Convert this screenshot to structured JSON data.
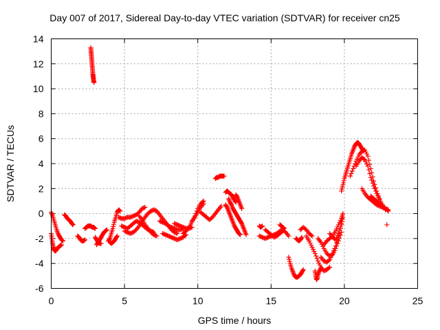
{
  "chart_data": {
    "type": "scatter",
    "title": "Day 007 of 2017, Sidereal Day-to-day VTEC variation (SDTVAR) for receiver cn25",
    "xlabel": "GPS time / hours",
    "ylabel": "SDTVAR / TECUs",
    "xlim": [
      0,
      25
    ],
    "ylim": [
      -6,
      14
    ],
    "xticks": [
      0,
      5,
      10,
      15,
      20,
      25
    ],
    "yticks": [
      -6,
      -4,
      -2,
      0,
      2,
      4,
      6,
      8,
      10,
      12,
      14
    ],
    "grid": true,
    "marker": "+",
    "series": [
      {
        "name": "SDTVAR",
        "color": "#ff0000",
        "tracks": [
          {
            "x": [
              0.0,
              0.1,
              0.2,
              0.3,
              0.4,
              0.5,
              0.6,
              0.7,
              0.8
            ],
            "y": [
              0.1,
              -0.2,
              -0.6,
              -1.0,
              -1.4,
              -1.7,
              -1.9,
              -2.1,
              -2.2
            ]
          },
          {
            "x": [
              0.0,
              0.05,
              0.1,
              0.15,
              0.2,
              0.25,
              0.3,
              0.35,
              0.4,
              0.5,
              0.6,
              0.7
            ],
            "y": [
              -1.6,
              -2.0,
              -2.4,
              -2.7,
              -2.9,
              -3.0,
              -3.0,
              -2.9,
              -2.8,
              -2.7,
              -2.6,
              -2.5
            ]
          },
          {
            "x": [
              0.9,
              1.0,
              1.1,
              1.2,
              1.3,
              1.4,
              1.5
            ],
            "y": [
              -0.1,
              -0.2,
              -0.4,
              -0.5,
              -0.6,
              -0.8,
              -0.9
            ]
          },
          {
            "x": [
              1.8,
              1.9,
              2.0,
              2.1,
              2.2,
              2.3
            ],
            "y": [
              -1.8,
              -1.9,
              -2.1,
              -2.2,
              -2.2,
              -2.1
            ]
          },
          {
            "x": [
              2.3,
              2.4,
              2.5,
              2.6,
              2.7,
              2.8,
              2.9,
              3.0
            ],
            "y": [
              -1.2,
              -1.1,
              -1.0,
              -1.0,
              -1.0,
              -1.1,
              -1.1,
              -1.2
            ]
          },
          {
            "x": [
              2.7,
              2.72,
              2.74,
              2.76,
              2.78,
              2.8,
              2.82,
              2.84,
              2.86,
              2.88,
              2.9,
              2.92
            ],
            "y": [
              13.3,
              13.0,
              12.7,
              12.4,
              12.1,
              11.8,
              11.5,
              11.2,
              11.0,
              10.8,
              10.6,
              10.5
            ]
          },
          {
            "x": [
              3.1,
              3.2,
              3.3,
              3.4,
              3.5,
              3.6,
              3.7,
              3.8
            ],
            "y": [
              -2.5,
              -2.3,
              -2.1,
              -1.9,
              -1.7,
              -1.5,
              -1.4,
              -1.3
            ]
          },
          {
            "x": [
              3.0,
              3.1,
              3.2,
              3.3,
              3.4
            ],
            "y": [
              -1.9,
              -2.1,
              -2.3,
              -2.4,
              -2.4
            ]
          },
          {
            "x": [
              3.9,
              4.0,
              4.1,
              4.2,
              4.3,
              4.4,
              4.5,
              4.6,
              4.7
            ],
            "y": [
              -2.2,
              -2.0,
              -1.6,
              -1.2,
              -0.7,
              -0.3,
              0.1,
              0.3,
              0.2
            ]
          },
          {
            "x": [
              4.0,
              4.1,
              4.2,
              4.3,
              4.4,
              4.5
            ],
            "y": [
              -2.3,
              -2.4,
              -2.3,
              -2.2,
              -2.0,
              -1.8
            ]
          },
          {
            "x": [
              4.6,
              4.8,
              5.0,
              5.2,
              5.4,
              5.6,
              5.8,
              6.0,
              6.2,
              6.4
            ],
            "y": [
              -0.3,
              -0.4,
              -0.4,
              -0.3,
              -0.3,
              -0.2,
              -0.1,
              0.1,
              0.4,
              0.5
            ]
          },
          {
            "x": [
              4.8,
              5.0,
              5.2,
              5.4,
              5.6,
              5.8,
              6.0,
              6.2,
              6.4,
              6.6,
              6.8,
              7.0
            ],
            "y": [
              -1.0,
              -1.1,
              -1.2,
              -1.0,
              -0.8,
              -0.6,
              -0.7,
              -0.9,
              -1.1,
              -1.3,
              -1.4,
              -1.5
            ]
          },
          {
            "x": [
              5.0,
              5.2,
              5.4,
              5.6,
              5.8,
              6.0,
              6.2,
              6.4,
              6.6,
              6.8,
              7.0,
              7.2,
              7.4,
              7.6,
              7.8,
              8.0,
              8.2,
              8.4,
              8.6
            ],
            "y": [
              -1.4,
              -1.5,
              -1.6,
              -1.5,
              -1.3,
              -1.0,
              -0.6,
              -0.3,
              0.0,
              0.2,
              0.3,
              0.2,
              -0.1,
              -0.4,
              -0.7,
              -1.0,
              -1.3,
              -1.5,
              -1.6
            ]
          },
          {
            "x": [
              6.0,
              6.2,
              6.4,
              6.6,
              6.8,
              7.0,
              7.2
            ],
            "y": [
              -0.2,
              -0.5,
              -0.9,
              -1.2,
              -1.5,
              -1.7,
              -1.8
            ]
          },
          {
            "x": [
              7.4,
              7.6,
              7.8,
              8.0,
              8.2,
              8.4,
              8.6,
              8.8,
              9.0
            ],
            "y": [
              -0.6,
              -0.7,
              -0.8,
              -1.0,
              -1.1,
              -1.2,
              -1.3,
              -1.3,
              -1.2
            ]
          },
          {
            "x": [
              7.6,
              7.8,
              8.0,
              8.2,
              8.4,
              8.6,
              8.8,
              9.0,
              9.2
            ],
            "y": [
              -1.6,
              -1.7,
              -1.8,
              -1.9,
              -2.0,
              -2.1,
              -2.0,
              -1.9,
              -1.7
            ]
          },
          {
            "x": [
              8.4,
              8.6,
              8.8,
              9.0,
              9.2,
              9.4,
              9.6
            ],
            "y": [
              -0.8,
              -0.9,
              -1.0,
              -1.1,
              -1.2,
              -1.2,
              -1.1
            ]
          },
          {
            "x": [
              9.0,
              9.2,
              9.4,
              9.6,
              9.8,
              10.0,
              10.2,
              10.4
            ],
            "y": [
              -1.6,
              -1.4,
              -1.1,
              -0.7,
              -0.2,
              0.4,
              0.8,
              1.0
            ]
          },
          {
            "x": [
              9.6,
              9.8,
              10.0,
              10.2,
              10.4
            ],
            "y": [
              -0.6,
              -0.3,
              0.1,
              0.5,
              0.8
            ]
          },
          {
            "x": [
              10.2,
              10.4,
              10.6,
              10.8,
              11.0,
              11.2,
              11.4,
              11.6
            ],
            "y": [
              0.1,
              -0.1,
              -0.3,
              -0.5,
              -0.3,
              0.0,
              0.3,
              0.6
            ]
          },
          {
            "x": [
              11.2,
              11.3,
              11.4,
              11.5,
              11.6,
              11.7,
              11.8
            ],
            "y": [
              2.8,
              2.9,
              2.9,
              3.0,
              3.0,
              3.0,
              3.0
            ]
          },
          {
            "x": [
              11.9,
              12.0,
              12.1,
              12.2,
              12.3,
              12.4,
              12.5,
              12.6
            ],
            "y": [
              1.7,
              1.8,
              1.7,
              1.6,
              1.5,
              1.3,
              1.1,
              0.9
            ]
          },
          {
            "x": [
              11.9,
              12.0,
              12.1,
              12.2,
              12.3,
              12.4,
              12.5,
              12.6,
              12.7,
              12.8,
              12.9
            ],
            "y": [
              0.7,
              0.5,
              0.2,
              -0.1,
              -0.4,
              -0.7,
              -1.0,
              -1.2,
              -1.4,
              -1.6,
              -1.7
            ]
          },
          {
            "x": [
              12.1,
              12.2,
              12.3,
              12.4,
              12.5,
              12.6,
              12.7,
              12.8,
              12.9,
              13.0,
              13.1,
              13.2,
              13.3
            ],
            "y": [
              1.2,
              0.9,
              0.7,
              0.4,
              0.2,
              0.0,
              -0.2,
              -0.4,
              -0.6,
              -0.8,
              -1.1,
              -1.4,
              -1.7
            ]
          },
          {
            "x": [
              12.6,
              12.7,
              12.8,
              12.9,
              13.0
            ],
            "y": [
              1.5,
              1.3,
              1.0,
              0.7,
              0.4
            ]
          },
          {
            "x": [
              14.2,
              14.3,
              14.4
            ],
            "y": [
              -1.0,
              -1.1,
              -1.0
            ]
          },
          {
            "x": [
              14.2,
              14.4,
              14.6,
              14.8,
              15.0,
              15.2,
              15.4,
              15.6,
              15.8,
              16.0,
              16.2
            ],
            "y": [
              -1.8,
              -1.9,
              -2.0,
              -1.9,
              -1.8,
              -1.7,
              -1.6,
              -1.4,
              -1.3,
              -1.5,
              -1.8
            ]
          },
          {
            "x": [
              14.6,
              14.8,
              15.0,
              15.2,
              15.4,
              15.6,
              15.8
            ],
            "y": [
              -1.3,
              -1.5,
              -1.7,
              -1.9,
              -1.8,
              -1.6,
              -1.4
            ]
          },
          {
            "x": [
              15.6,
              15.7,
              15.8,
              15.9
            ],
            "y": [
              -0.9,
              -1.0,
              -1.1,
              -1.2
            ]
          },
          {
            "x": [
              16.2,
              16.3,
              16.4,
              16.5,
              16.6,
              16.7,
              16.8,
              16.9,
              17.0,
              17.1,
              17.2
            ],
            "y": [
              -3.5,
              -4.0,
              -4.4,
              -4.7,
              -5.0,
              -5.1,
              -5.1,
              -5.0,
              -4.9,
              -4.7,
              -4.5
            ]
          },
          {
            "x": [
              16.7,
              16.8,
              16.9,
              17.0,
              17.1
            ],
            "y": [
              -2.0,
              -2.1,
              -2.2,
              -2.1,
              -1.9
            ]
          },
          {
            "x": [
              17.0,
              17.2,
              17.4,
              17.6,
              17.8
            ],
            "y": [
              -1.3,
              -1.1,
              -1.3,
              -1.6,
              -1.8
            ]
          },
          {
            "x": [
              17.4,
              17.6,
              17.8,
              18.0,
              18.2,
              18.4,
              18.6,
              18.8,
              19.0
            ],
            "y": [
              -1.8,
              -2.2,
              -2.7,
              -3.2,
              -3.8,
              -4.3,
              -4.6,
              -4.5,
              -4.3
            ]
          },
          {
            "x": [
              18.0,
              18.05,
              18.1,
              18.15,
              18.2,
              18.3,
              18.4
            ],
            "y": [
              -4.6,
              -5.0,
              -5.3,
              -5.2,
              -4.9,
              -4.6,
              -4.4
            ]
          },
          {
            "x": [
              18.2,
              18.4,
              18.6,
              18.8,
              19.0,
              19.2,
              19.4,
              19.6,
              19.8
            ],
            "y": [
              -2.0,
              -2.3,
              -2.8,
              -3.2,
              -3.4,
              -3.3,
              -2.8,
              -2.2,
              -1.5
            ]
          },
          {
            "x": [
              18.4,
              18.6,
              18.8,
              19.0,
              19.2,
              19.4,
              19.6,
              19.8
            ],
            "y": [
              -3.5,
              -3.8,
              -3.9,
              -3.7,
              -3.2,
              -2.6,
              -1.8,
              -0.9
            ]
          },
          {
            "x": [
              18.6,
              18.8,
              19.0,
              19.2,
              19.4,
              19.6,
              19.8,
              19.9
            ],
            "y": [
              -2.5,
              -2.2,
              -2.0,
              -1.8,
              -1.4,
              -0.9,
              -0.4,
              0.0
            ]
          },
          {
            "x": [
              19.0,
              19.2,
              19.4,
              19.6,
              19.8,
              19.9
            ],
            "y": [
              -1.6,
              -1.9,
              -2.1,
              -1.6,
              -0.8,
              -0.3
            ]
          },
          {
            "x": [
              19.8,
              19.9,
              20.0,
              20.1,
              20.2,
              20.3,
              20.4,
              20.5,
              20.6,
              20.7,
              20.8,
              20.9,
              21.0,
              21.1,
              21.2,
              21.3
            ],
            "y": [
              1.8,
              2.3,
              2.8,
              3.2,
              3.6,
              4.0,
              4.4,
              4.8,
              5.1,
              5.4,
              5.6,
              5.7,
              5.6,
              5.4,
              5.2,
              5.0
            ]
          },
          {
            "x": [
              20.4,
              20.6,
              20.8,
              21.0,
              21.2,
              21.4,
              21.6,
              21.8,
              22.0,
              22.2,
              22.4
            ],
            "y": [
              3.0,
              3.6,
              4.2,
              4.7,
              5.0,
              5.1,
              4.6,
              3.6,
              2.6,
              1.8,
              1.2
            ]
          },
          {
            "x": [
              20.8,
              21.0,
              21.2,
              21.4,
              21.6,
              21.8,
              22.0,
              22.2,
              22.4,
              22.6,
              22.8
            ],
            "y": [
              3.8,
              4.2,
              4.5,
              4.3,
              3.8,
              2.9,
              2.2,
              1.6,
              1.1,
              0.7,
              0.3
            ]
          },
          {
            "x": [
              21.2,
              21.4,
              21.6,
              21.8,
              22.0,
              22.2,
              22.4,
              22.6,
              22.8,
              23.0
            ],
            "y": [
              2.0,
              1.6,
              1.3,
              1.1,
              0.9,
              0.7,
              0.6,
              0.5,
              0.4,
              0.3
            ]
          },
          {
            "x": [
              21.8,
              22.0,
              22.2,
              22.4,
              22.6,
              22.8,
              23.0
            ],
            "y": [
              1.4,
              1.2,
              1.0,
              0.8,
              0.6,
              0.4,
              0.2
            ]
          },
          {
            "x": [
              22.9
            ],
            "y": [
              -0.9
            ]
          }
        ]
      }
    ]
  }
}
